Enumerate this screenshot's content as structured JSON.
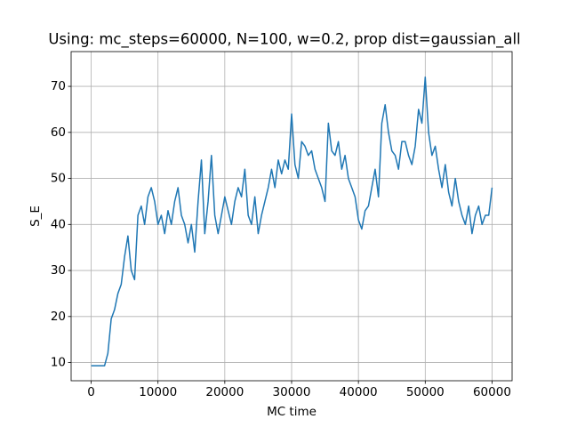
{
  "chart_data": {
    "type": "line",
    "title": "Using: mc_steps=60000, N=100, w=0.2, prop dist=gaussian_all",
    "x_label": "MC time",
    "y_label": "S_E",
    "x": [
      0,
      500,
      1000,
      1500,
      2000,
      2500,
      3000,
      3500,
      4000,
      4500,
      5000,
      5500,
      6000,
      6500,
      7000,
      7500,
      8000,
      8500,
      9000,
      9500,
      10000,
      10500,
      11000,
      11500,
      12000,
      12500,
      13000,
      13500,
      14000,
      14500,
      15000,
      15500,
      16000,
      16500,
      17000,
      17500,
      18000,
      18500,
      19000,
      19500,
      20000,
      20500,
      21000,
      21500,
      22000,
      22500,
      23000,
      23500,
      24000,
      24500,
      25000,
      25500,
      26000,
      26500,
      27000,
      27500,
      28000,
      28500,
      29000,
      29500,
      30000,
      30500,
      31000,
      31500,
      32000,
      32500,
      33000,
      33500,
      34000,
      34500,
      35000,
      35500,
      36000,
      36500,
      37000,
      37500,
      38000,
      38500,
      39000,
      39500,
      40000,
      40500,
      41000,
      41500,
      42000,
      42500,
      43000,
      43500,
      44000,
      44500,
      45000,
      45500,
      46000,
      46500,
      47000,
      47500,
      48000,
      48500,
      49000,
      49500,
      50000,
      50500,
      51000,
      51500,
      52000,
      52500,
      53000,
      53500,
      54000,
      54500,
      55000,
      55500,
      56000,
      56500,
      57000,
      57500,
      58000,
      58500,
      59000,
      59500,
      60000
    ],
    "values": [
      9.3,
      9.3,
      9.3,
      9.3,
      9.3,
      12,
      19.5,
      21.5,
      25,
      27,
      33,
      37.5,
      30,
      28,
      42,
      44,
      40,
      46,
      48,
      45,
      40,
      42,
      38,
      43,
      40,
      45,
      48,
      42,
      40,
      36,
      40,
      34,
      45,
      54,
      38,
      45,
      55,
      42,
      38,
      42,
      46,
      43,
      40,
      45,
      48,
      46,
      52,
      42,
      40,
      46,
      38,
      42,
      45,
      48,
      52,
      48,
      54,
      51,
      54,
      52,
      64,
      53,
      50,
      58,
      57,
      55,
      56,
      52,
      50,
      48,
      45,
      62,
      56,
      55,
      58,
      52,
      55,
      50,
      48,
      46,
      41,
      39,
      43,
      44,
      48,
      52,
      46,
      62,
      66,
      60,
      56,
      55,
      52,
      58,
      58,
      55,
      53,
      57,
      65,
      62,
      72,
      60,
      55,
      57,
      52,
      48,
      53,
      47,
      44,
      50,
      45,
      42,
      40,
      44,
      38,
      42,
      44,
      40,
      42,
      42,
      48
    ],
    "color": "#1f77b4",
    "xlim": [
      -3000,
      63000
    ],
    "xticks": [
      0,
      10000,
      20000,
      30000,
      40000,
      50000,
      60000
    ],
    "ylim": [
      6.05,
      77.55
    ],
    "yticks": [
      10,
      20,
      30,
      40,
      50,
      60,
      70
    ],
    "grid": true
  }
}
